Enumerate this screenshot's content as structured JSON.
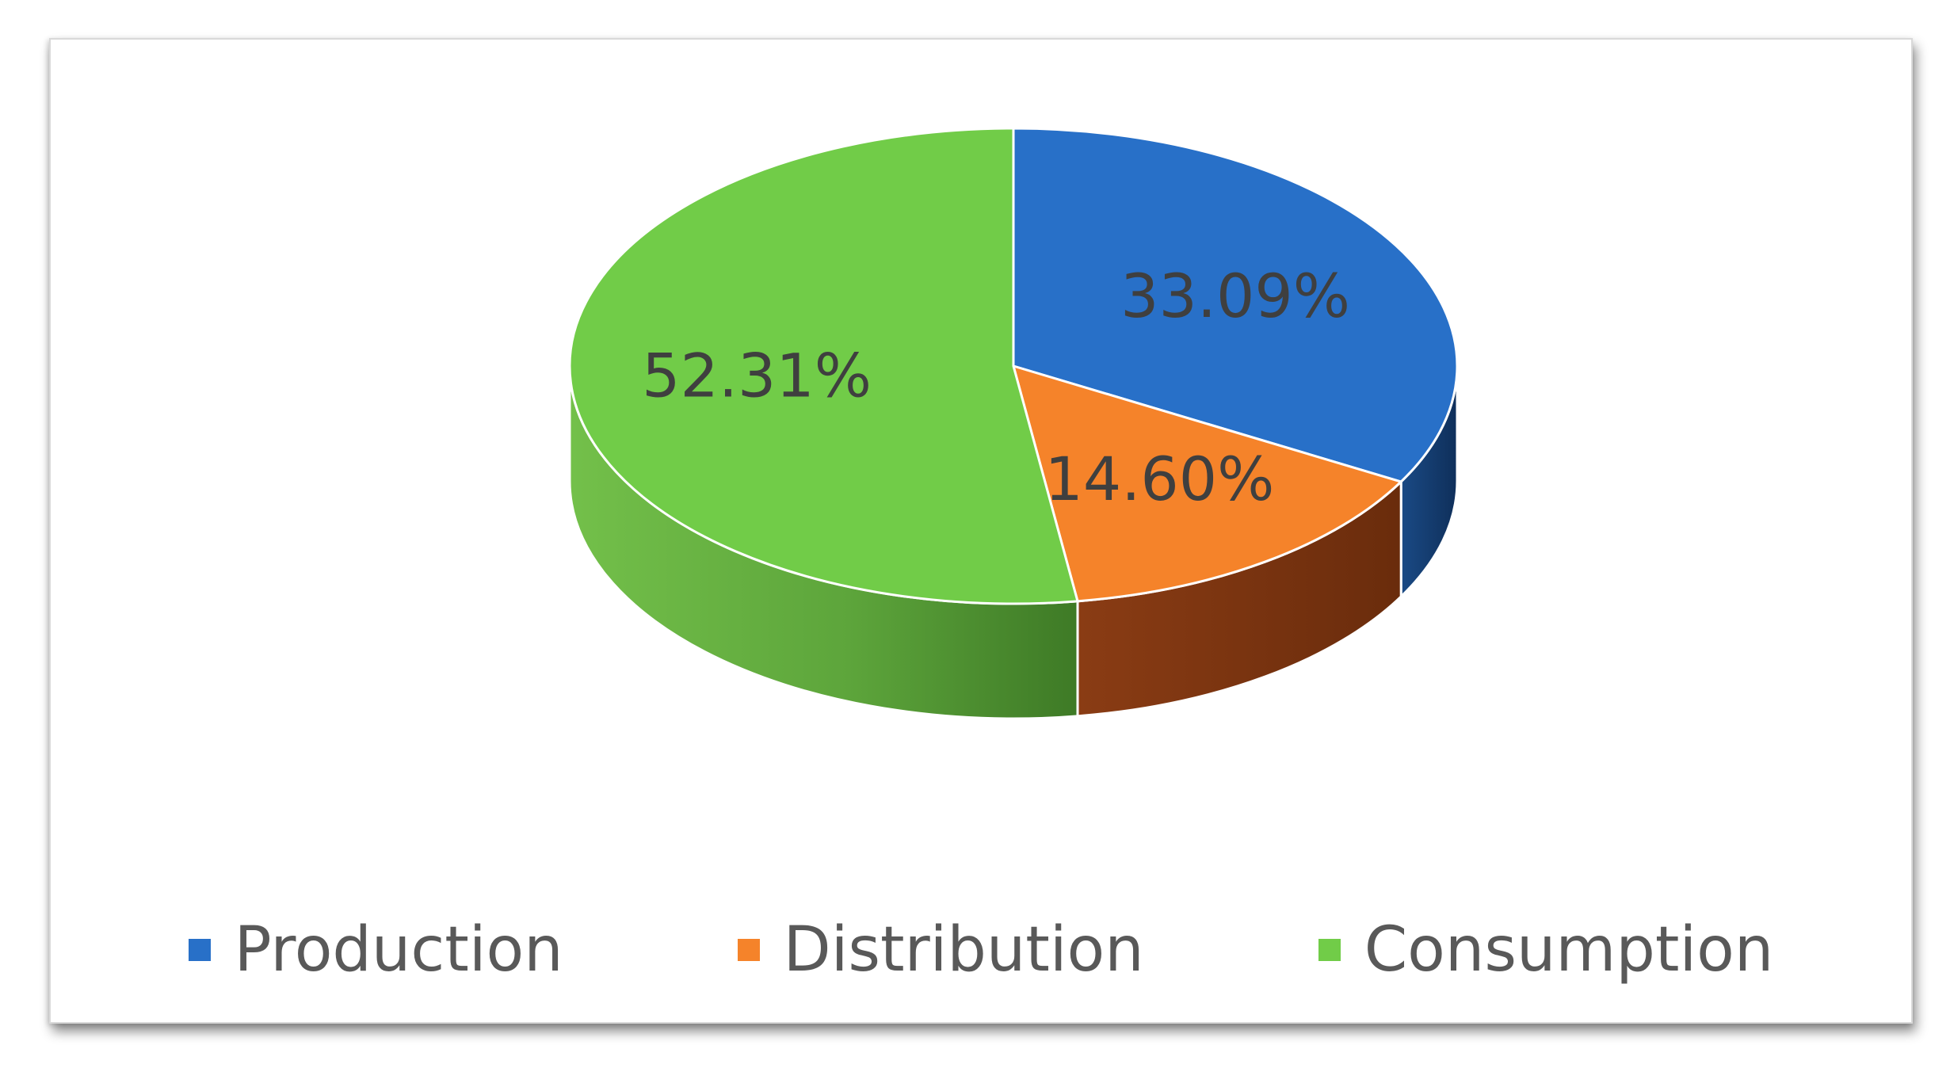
{
  "chart_data": {
    "type": "pie",
    "style": "3d",
    "categories": [
      "Production",
      "Distribution",
      "Consumption"
    ],
    "values": [
      33.09,
      14.6,
      52.31
    ],
    "data_labels": [
      "33.09%",
      "14.60%",
      "52.31%"
    ],
    "colors": [
      "#2870c8",
      "#f5832a",
      "#71cc48"
    ],
    "side_colors": [
      "#1e4f8c",
      "#7a3310",
      "#5ea83a"
    ],
    "legend_position": "bottom"
  }
}
